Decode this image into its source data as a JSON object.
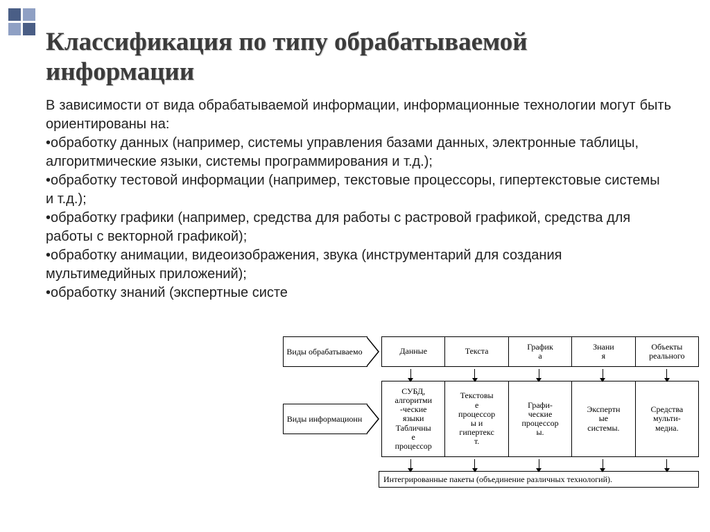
{
  "title": "Классификация по типу обрабатываемой информации",
  "intro": "В  зависимости от  вида  обрабатываемой   информации, информационные технологии могут быть ориентированы на:",
  "bullets": [
    "обработку данных (например, системы управления базами данных, электронные   таблицы,   алгоритмические   языки,   системы программирования и т.д.);",
    "обработку тестовой информации (например, текстовые процессоры, гипертекстовые системы и т.д.);",
    "обработку графики (например, средства для работы с растровой  графикой, средства для работы с векторной графикой);",
    "обработку анимации, видеоизображения, звука (инструментарий для создания мультимедийных приложений);",
    "обработку знаний (экспертные систе"
  ],
  "diagram": {
    "label_top": "Виды обрабатываемо",
    "label_mid": "Виды информационн",
    "row_top": [
      "Данные",
      "Текста",
      "График\nа",
      "Знани\nя",
      "Объекты\nреального"
    ],
    "row_mid": [
      "СУБД,\nалгоритми\n-ческие\nязыки\nТабличны\nе\nпроцессор",
      "Текстовы\nе\nпроцессор\nы и\nгипертекс\nт.",
      "Графи-\nческие\nпроцессор\nы.",
      "Экспертн\nые\nсистемы.",
      "Средства\nмульти-\nмедиа."
    ],
    "bottom": "Интегрированные пакеты (объединение различных технологий)."
  },
  "colors": {
    "bg": "#ffffff",
    "text": "#222222",
    "title": "#3b3b3b",
    "deco_light": "#8fa0c4",
    "deco_dark": "#4a5e86",
    "line": "#000000"
  }
}
